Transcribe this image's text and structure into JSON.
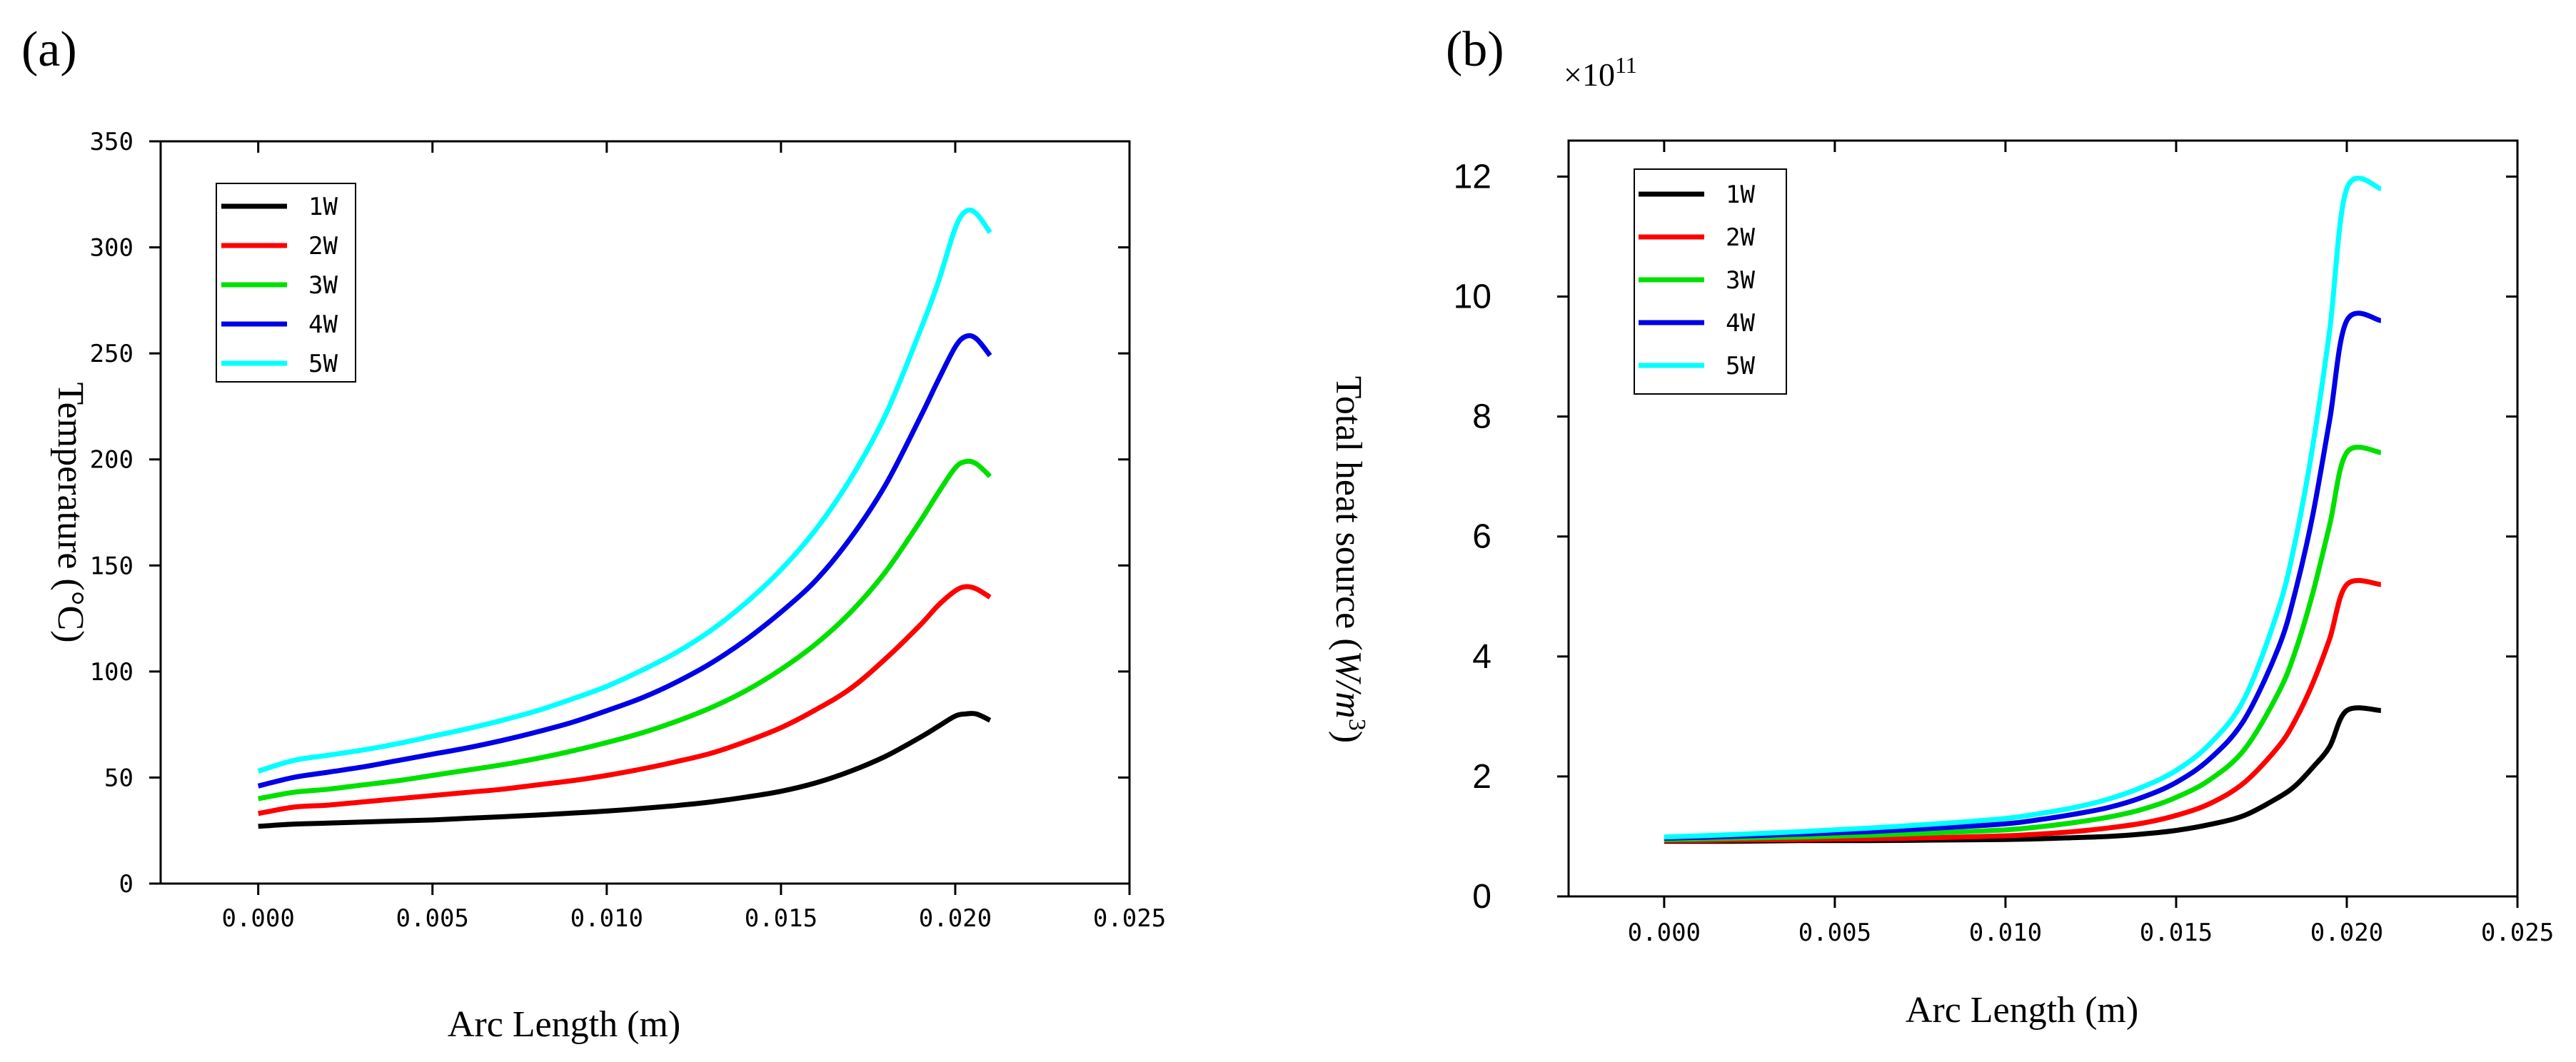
{
  "chart_data": [
    {
      "panel": "(a)",
      "type": "line",
      "xlabel": "Arc Length (m)",
      "ylabel": "Temperature (°C)",
      "xlim": [
        -0.0028,
        0.025
      ],
      "ylim": [
        0,
        350
      ],
      "xticks": [
        0.0,
        0.005,
        0.01,
        0.015,
        0.02,
        0.025
      ],
      "xtick_labels": [
        "0.000",
        "0.005",
        "0.010",
        "0.015",
        "0.020",
        "0.025"
      ],
      "yticks": [
        0,
        50,
        100,
        150,
        200,
        250,
        300,
        350
      ],
      "ytick_labels": [
        "0",
        "50",
        "100",
        "150",
        "200",
        "250",
        "300",
        "350"
      ],
      "legend_position": "top-left",
      "x": [
        0.0,
        0.001,
        0.002,
        0.003,
        0.004,
        0.005,
        0.006,
        0.007,
        0.008,
        0.009,
        0.01,
        0.011,
        0.012,
        0.013,
        0.014,
        0.015,
        0.016,
        0.017,
        0.018,
        0.019,
        0.0195,
        0.02,
        0.0203,
        0.0206,
        0.021
      ],
      "series": [
        {
          "name": "1W",
          "color": "#000000",
          "values": [
            27,
            28,
            28.5,
            29,
            29.5,
            30,
            30.8,
            31.5,
            32.3,
            33.2,
            34.2,
            35.4,
            36.8,
            38.5,
            40.8,
            43.5,
            47.5,
            53,
            60,
            69,
            74,
            79,
            80,
            80,
            77
          ]
        },
        {
          "name": "2W",
          "color": "#ff0000",
          "values": [
            33,
            36,
            37,
            38.5,
            40,
            41.5,
            43,
            44.5,
            46.5,
            48.5,
            51,
            54,
            57.5,
            61.5,
            67,
            73.5,
            82,
            92,
            106,
            122,
            131,
            138,
            140,
            139,
            135
          ]
        },
        {
          "name": "3W",
          "color": "#00e000",
          "values": [
            40,
            43,
            44.5,
            46.5,
            48.5,
            51,
            53.5,
            56,
            59,
            62.5,
            66.5,
            71,
            76.5,
            83,
            91,
            101,
            113,
            128,
            147,
            171,
            184,
            196,
            199,
            198,
            192
          ]
        },
        {
          "name": "4W",
          "color": "#0000e6",
          "values": [
            46,
            50,
            52.5,
            55,
            58,
            61,
            64,
            67.5,
            71.5,
            76,
            81.5,
            87.5,
            95,
            104,
            115,
            128,
            143,
            163,
            188,
            220,
            237,
            253,
            258,
            257,
            249
          ]
        },
        {
          "name": "5W",
          "color": "#00ffff",
          "values": [
            53,
            58,
            60.5,
            63,
            66,
            69.5,
            73,
            77,
            81.5,
            87,
            93,
            100.5,
            109,
            119.5,
            132.5,
            148,
            167,
            191,
            221,
            261,
            283,
            309,
            317,
            316,
            307
          ]
        }
      ]
    },
    {
      "panel": "(b)",
      "type": "line",
      "xlabel": "Arc Length (m)",
      "ylabel": "Total heat source (W/m³)",
      "ylabel_main": "Total heat source (",
      "ylabel_var": "W/m",
      "ylabel_sup": "3",
      "ylabel_close": ")",
      "multiplier": "×10",
      "multiplier_exp": "11",
      "xlim": [
        -0.0028,
        0.025
      ],
      "ylim": [
        0,
        12.6
      ],
      "xticks": [
        0.0,
        0.005,
        0.01,
        0.015,
        0.02,
        0.025
      ],
      "xtick_labels": [
        "0.000",
        "0.005",
        "0.010",
        "0.015",
        "0.020",
        "0.025"
      ],
      "yticks": [
        0,
        2,
        4,
        6,
        8,
        10,
        12
      ],
      "ytick_labels": [
        "0",
        "2",
        "4",
        "6",
        "8",
        "10",
        "12"
      ],
      "legend_position": "top-left",
      "x": [
        0.0,
        0.002,
        0.004,
        0.006,
        0.008,
        0.01,
        0.011,
        0.012,
        0.013,
        0.014,
        0.015,
        0.016,
        0.017,
        0.018,
        0.0185,
        0.019,
        0.0195,
        0.02,
        0.021
      ],
      "series": [
        {
          "name": "1W",
          "color": "#000000",
          "values": [
            0.92,
            0.92,
            0.93,
            0.93,
            0.94,
            0.95,
            0.96,
            0.98,
            1.0,
            1.04,
            1.1,
            1.2,
            1.35,
            1.65,
            1.85,
            2.15,
            2.5,
            3.1,
            3.1
          ]
        },
        {
          "name": "2W",
          "color": "#ff0000",
          "values": [
            0.93,
            0.94,
            0.95,
            0.96,
            0.98,
            1.01,
            1.04,
            1.08,
            1.14,
            1.22,
            1.35,
            1.55,
            1.9,
            2.5,
            2.95,
            3.55,
            4.3,
            5.2,
            5.2
          ]
        },
        {
          "name": "3W",
          "color": "#00e000",
          "values": [
            0.95,
            0.97,
            0.99,
            1.02,
            1.06,
            1.11,
            1.16,
            1.23,
            1.32,
            1.45,
            1.65,
            1.95,
            2.45,
            3.4,
            4.1,
            5.05,
            6.2,
            7.4,
            7.4
          ]
        },
        {
          "name": "4W",
          "color": "#0000e6",
          "values": [
            0.97,
            1.0,
            1.04,
            1.08,
            1.14,
            1.21,
            1.28,
            1.37,
            1.48,
            1.65,
            1.9,
            2.3,
            2.95,
            4.15,
            5.1,
            6.35,
            7.95,
            9.6,
            9.6
          ]
        },
        {
          "name": "5W",
          "color": "#00ffff",
          "values": [
            0.99,
            1.03,
            1.08,
            1.14,
            1.21,
            1.3,
            1.38,
            1.48,
            1.62,
            1.82,
            2.1,
            2.55,
            3.3,
            4.8,
            5.95,
            7.5,
            9.45,
            11.8,
            11.8
          ]
        }
      ]
    }
  ]
}
